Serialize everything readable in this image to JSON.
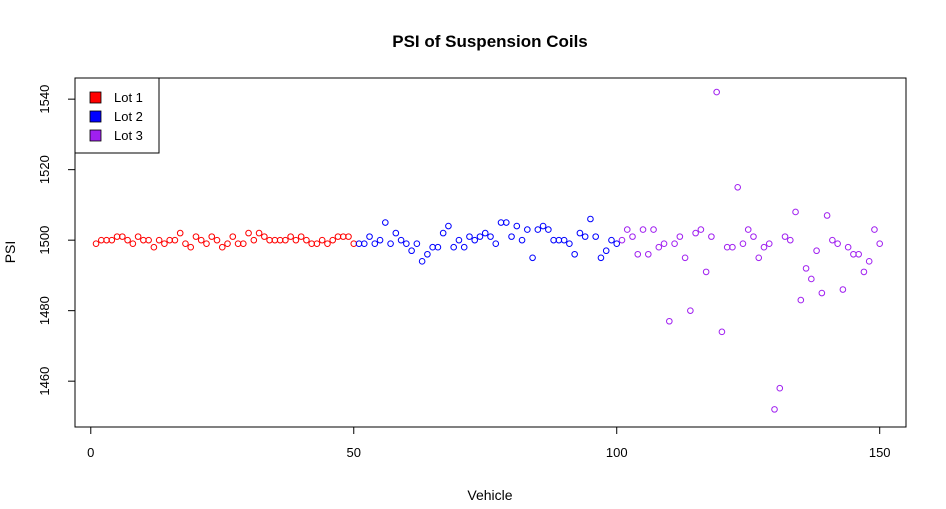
{
  "chart_data": {
    "type": "scatter",
    "title": "PSI of Suspension Coils",
    "xlabel": "Vehicle",
    "ylabel": "PSI",
    "xlim": [
      -3,
      155
    ],
    "ylim": [
      1447,
      1546
    ],
    "x_ticks": [
      0,
      50,
      100,
      150
    ],
    "y_ticks": [
      1460,
      1480,
      1500,
      1520,
      1540
    ],
    "grid": false,
    "legend_position": "top-left",
    "series": [
      {
        "name": "Lot 1",
        "color": "#ff0000",
        "x": [
          1,
          2,
          3,
          4,
          5,
          6,
          7,
          8,
          9,
          10,
          11,
          12,
          13,
          14,
          15,
          16,
          17,
          18,
          19,
          20,
          21,
          22,
          23,
          24,
          25,
          26,
          27,
          28,
          29,
          30,
          31,
          32,
          33,
          34,
          35,
          36,
          37,
          38,
          39,
          40,
          41,
          42,
          43,
          44,
          45,
          46,
          47,
          48,
          49,
          50
        ],
        "values": [
          1499,
          1500,
          1500,
          1500,
          1501,
          1501,
          1500,
          1499,
          1501,
          1500,
          1500,
          1498,
          1500,
          1499,
          1500,
          1500,
          1502,
          1499,
          1498,
          1501,
          1500,
          1499,
          1501,
          1500,
          1498,
          1499,
          1501,
          1499,
          1499,
          1502,
          1500,
          1502,
          1501,
          1500,
          1500,
          1500,
          1500,
          1501,
          1500,
          1501,
          1500,
          1499,
          1499,
          1500,
          1499,
          1500,
          1501,
          1501,
          1501,
          1499
        ]
      },
      {
        "name": "Lot 2",
        "color": "#0000ff",
        "x": [
          51,
          52,
          53,
          54,
          55,
          56,
          57,
          58,
          59,
          60,
          61,
          62,
          63,
          64,
          65,
          66,
          67,
          68,
          69,
          70,
          71,
          72,
          73,
          74,
          75,
          76,
          77,
          78,
          79,
          80,
          81,
          82,
          83,
          84,
          85,
          86,
          87,
          88,
          89,
          90,
          91,
          92,
          93,
          94,
          95,
          96,
          97,
          98,
          99,
          100
        ],
        "values": [
          1499,
          1499,
          1501,
          1499,
          1500,
          1505,
          1499,
          1502,
          1500,
          1499,
          1497,
          1499,
          1494,
          1496,
          1498,
          1498,
          1502,
          1504,
          1498,
          1500,
          1498,
          1501,
          1500,
          1501,
          1502,
          1501,
          1499,
          1505,
          1505,
          1501,
          1504,
          1500,
          1503,
          1495,
          1503,
          1504,
          1503,
          1500,
          1500,
          1500,
          1499,
          1496,
          1502,
          1501,
          1506,
          1501,
          1495,
          1497,
          1500,
          1499
        ]
      },
      {
        "name": "Lot 3",
        "color": "#a020f0",
        "x": [
          101,
          102,
          103,
          104,
          105,
          106,
          107,
          108,
          109,
          110,
          111,
          112,
          113,
          114,
          115,
          116,
          117,
          118,
          119,
          120,
          121,
          122,
          123,
          124,
          125,
          126,
          127,
          128,
          129,
          130,
          131,
          132,
          133,
          134,
          135,
          136,
          137,
          138,
          139,
          140,
          141,
          142,
          143,
          144,
          145,
          146,
          147,
          148,
          149,
          150
        ],
        "values": [
          1500,
          1503,
          1501,
          1496,
          1503,
          1496,
          1503,
          1498,
          1499,
          1477,
          1499,
          1501,
          1495,
          1480,
          1502,
          1503,
          1491,
          1501,
          1542,
          1474,
          1498,
          1498,
          1515,
          1499,
          1503,
          1501,
          1495,
          1498,
          1499,
          1452,
          1458,
          1501,
          1500,
          1508,
          1483,
          1492,
          1489,
          1497,
          1485,
          1507,
          1500,
          1499,
          1486,
          1498,
          1496,
          1496,
          1491,
          1494,
          1503,
          1499
        ]
      }
    ]
  }
}
